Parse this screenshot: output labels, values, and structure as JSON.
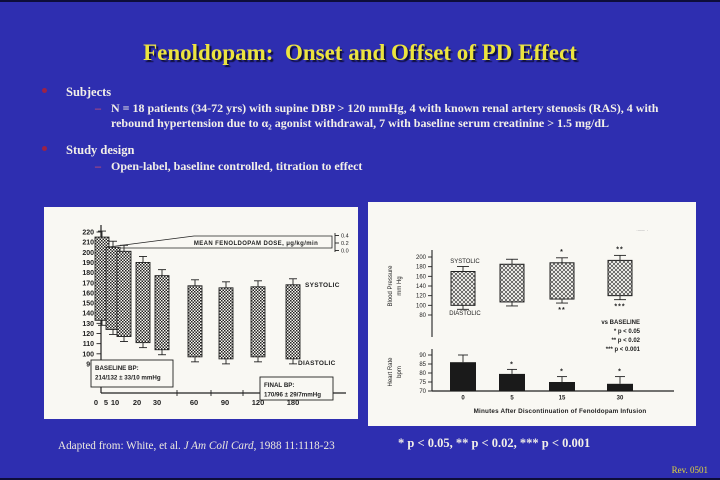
{
  "title": "Fenoldopam:  Onset and Offset of PD Effect",
  "dash": "–",
  "bullets": [
    {
      "label": "Subjects",
      "lines": [
        "N = 18 patients (34-72 yrs) with supine DBP > 120 mmHg, 4 with known renal artery stenosis (RAS), 4 with",
        "rebound hypertension due to α₂ agonist withdrawal, 7 with baseline serum creatinine > 1.5 mg/dL"
      ]
    },
    {
      "label": "Study design",
      "lines": [
        "Open-label, baseline controlled, titration to effect"
      ]
    }
  ],
  "citation": {
    "prefix": "Adapted from: White, et al. ",
    "journal": "J Am Coll Card",
    "suffix": ", 1988 11:1118-23"
  },
  "footnote": "* p < 0.05, ** p < 0.02, *** p < 0.001",
  "rev": "Rev. 0501",
  "colors": {
    "background": "#2e2eb0",
    "title_text": "#ece43f",
    "body_text": "#f2efe8",
    "bullet_marker": "#9b2247",
    "panel": "#f9f8f3",
    "chart_ink": "#222222"
  },
  "chart_data": [
    {
      "type": "bar",
      "variant": "floating-range-bars",
      "banner": "MEAN FENOLDOPAM DOSE, μg/kg/min",
      "dose_scale_ticks": [
        "0.4",
        "0.2",
        "0.0"
      ],
      "x_minutes": [
        0,
        5,
        10,
        20,
        30,
        60,
        90,
        120,
        180
      ],
      "ylim": [
        85,
        225
      ],
      "yticks": [
        220,
        210,
        200,
        190,
        180,
        170,
        160,
        150,
        140,
        130,
        120,
        110,
        100,
        90
      ],
      "series": [
        {
          "name": "Blood pressure range (diastolic to systolic), mmHg",
          "diastolic": [
            133,
            124,
            117,
            111,
            104,
            97,
            95,
            97,
            95
          ],
          "systolic": [
            215,
            205,
            201,
            190,
            177,
            167,
            165,
            166,
            168
          ]
        }
      ],
      "bar_labels": {
        "top": "SYSTOLIC",
        "bottom": "DIASTOLIC"
      },
      "baseline_box": [
        "BASELINE BP:",
        "214/132 ± 33/10 mmHg"
      ],
      "final_box": [
        "FINAL BP:",
        "170/96 ± 29/7mmHg"
      ]
    },
    {
      "type": "bar",
      "variant": "two-panel-offset",
      "x_minutes": [
        0,
        5,
        15,
        30
      ],
      "xlabel": "Minutes After Discontinuation of Fenoldopam Infusion",
      "scan_marks": "·–– ·",
      "bp_panel": {
        "ylabel": [
          "Blood Pressure",
          "mm Hg"
        ],
        "yticks": [
          200,
          180,
          160,
          140,
          120,
          100,
          80
        ],
        "diastolic": [
          100,
          107,
          113,
          120
        ],
        "systolic": [
          170,
          185,
          188,
          193
        ],
        "systolic_marks": [
          "",
          "",
          "*",
          "**"
        ],
        "diastolic_marks": [
          "",
          "",
          "**",
          "***"
        ],
        "labels": {
          "top": "SYSTOLIC",
          "bottom": "DIASTOLIC"
        }
      },
      "hr_panel": {
        "ylabel": [
          "Heart Rate",
          "bpm"
        ],
        "yticks": [
          90,
          85,
          80,
          75,
          70
        ],
        "values": [
          86,
          79.5,
          75,
          74
        ],
        "upper_error": [
          4,
          2.5,
          3,
          4
        ],
        "marks": [
          "",
          "*",
          "*",
          "*"
        ]
      },
      "legend": [
        "vs BASELINE",
        "* p < 0.05",
        "** p < 0.02",
        "*** p < 0.001"
      ]
    }
  ]
}
